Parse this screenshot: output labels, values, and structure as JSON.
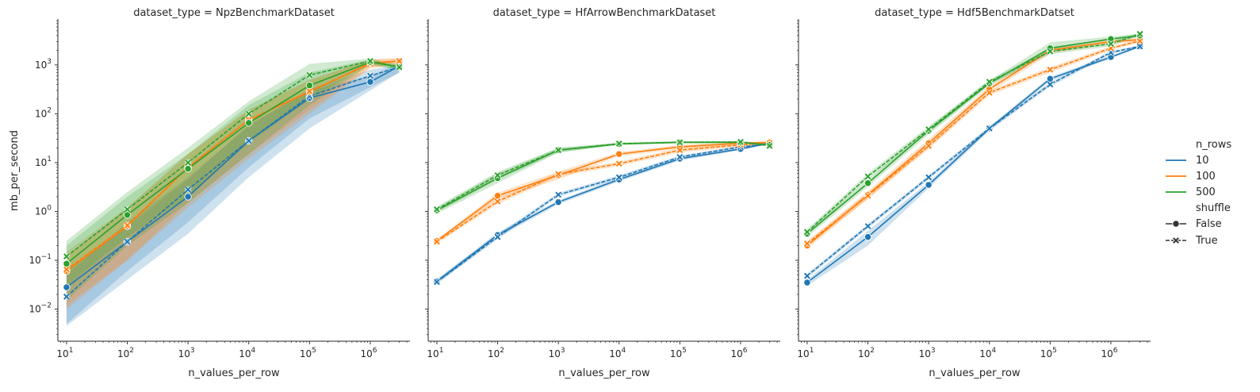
{
  "chart_data": {
    "type": "line",
    "xlabel": "n_values_per_row",
    "ylabel": "mb_per_second",
    "xscale": "log",
    "yscale": "log",
    "x": [
      10,
      100,
      1000,
      10000,
      100000,
      1000000,
      3000000
    ],
    "xtick_labels": [
      {
        "base": "10",
        "exp": "1"
      },
      {
        "base": "10",
        "exp": "2"
      },
      {
        "base": "10",
        "exp": "3"
      },
      {
        "base": "10",
        "exp": "4"
      },
      {
        "base": "10",
        "exp": "5"
      },
      {
        "base": "10",
        "exp": "6"
      }
    ],
    "ytick_labels": [
      {
        "base": "10",
        "exp": "−2"
      },
      {
        "base": "10",
        "exp": "−1"
      },
      {
        "base": "10",
        "exp": "0"
      },
      {
        "base": "10",
        "exp": "1"
      },
      {
        "base": "10",
        "exp": "2"
      },
      {
        "base": "10",
        "exp": "3"
      }
    ],
    "grid": false,
    "legend_placement": "right",
    "legend": {
      "title_hue": "n_rows",
      "hue_entries": [
        {
          "label": "10",
          "color": "#1f77b4"
        },
        {
          "label": "100",
          "color": "#ff7f0e"
        },
        {
          "label": "500",
          "color": "#2ca02c"
        }
      ],
      "title_style": "shuffle",
      "style_entries": [
        {
          "label": "False",
          "marker": "circle",
          "dash": "solid"
        },
        {
          "label": "True",
          "marker": "x",
          "dash": "dashed"
        }
      ]
    },
    "panels": [
      {
        "title": "dataset_type = NpzBenchmarkDataset",
        "series": [
          {
            "n_rows": "10",
            "shuffle": "False",
            "values": [
              0.028,
              0.24,
              2.0,
              28,
              210,
              450,
              950
            ],
            "lower": [
              0.0045,
              0.04,
              0.35,
              5,
              50,
              300,
              700
            ],
            "upper": [
              0.06,
              0.5,
              4.5,
              60,
              300,
              600,
              1100
            ]
          },
          {
            "n_rows": "10",
            "shuffle": "True",
            "values": [
              0.018,
              0.24,
              2.8,
              28,
              230,
              600,
              900
            ],
            "lower": [
              0.005,
              0.06,
              0.6,
              8,
              80,
              350,
              700
            ],
            "upper": [
              0.05,
              0.6,
              5,
              55,
              320,
              800,
              1000
            ]
          },
          {
            "n_rows": "100",
            "shuffle": "False",
            "values": [
              0.06,
              0.5,
              8,
              75,
              280,
              1100,
              1200
            ],
            "lower": [
              0.012,
              0.1,
              1.5,
              15,
              120,
              900,
              1000
            ],
            "upper": [
              0.12,
              1.2,
              15,
              120,
              500,
              1300,
              1350
            ]
          },
          {
            "n_rows": "100",
            "shuffle": "True",
            "values": [
              0.065,
              0.52,
              8,
              75,
              290,
              1050,
              1200
            ],
            "lower": [
              0.01,
              0.1,
              1.2,
              12,
              100,
              850,
              1000
            ],
            "upper": [
              0.15,
              1.2,
              15,
              120,
              480,
              1300,
              1350
            ]
          },
          {
            "n_rows": "500",
            "shuffle": "False",
            "values": [
              0.085,
              0.85,
              7.5,
              65,
              380,
              1150,
              900
            ],
            "lower": [
              0.015,
              0.2,
              1.5,
              15,
              150,
              1000,
              800
            ],
            "upper": [
              0.2,
              2,
              15,
              150,
              700,
              1300,
              1000
            ]
          },
          {
            "n_rows": "500",
            "shuffle": "True",
            "values": [
              0.12,
              1.1,
              10,
              100,
              620,
              1200,
              900
            ],
            "lower": [
              0.03,
              0.3,
              2,
              25,
              200,
              1000,
              800
            ],
            "upper": [
              0.25,
              2.5,
              20,
              180,
              1050,
              1350,
              1000
            ]
          }
        ]
      },
      {
        "title": "dataset_type = HfArrowBenchmarkDataset",
        "series": [
          {
            "n_rows": "10",
            "shuffle": "False",
            "values": [
              0.037,
              0.33,
              1.55,
              4.5,
              12,
              19,
              25
            ],
            "lower": [
              0.033,
              0.29,
              1.4,
              4.1,
              11,
              18,
              24
            ],
            "upper": [
              0.041,
              0.37,
              1.7,
              4.9,
              13,
              20,
              26
            ]
          },
          {
            "n_rows": "10",
            "shuffle": "True",
            "values": [
              0.036,
              0.3,
              2.2,
              5,
              13,
              21,
              24
            ],
            "lower": [
              0.033,
              0.27,
              2.0,
              4.6,
              12,
              20,
              23
            ],
            "upper": [
              0.04,
              0.34,
              2.4,
              5.5,
              14,
              22,
              25
            ]
          },
          {
            "n_rows": "100",
            "shuffle": "False",
            "values": [
              0.25,
              2.1,
              5.5,
              15,
              21,
              25,
              26
            ],
            "lower": [
              0.23,
              1.8,
              4.5,
              13.5,
              19,
              23,
              25
            ],
            "upper": [
              0.27,
              2.4,
              6.5,
              16.5,
              23,
              27,
              27
            ]
          },
          {
            "n_rows": "100",
            "shuffle": "True",
            "values": [
              0.24,
              1.6,
              5.8,
              9.5,
              18,
              23,
              25
            ],
            "lower": [
              0.22,
              1.4,
              5.2,
              8.5,
              16,
              21,
              24
            ],
            "upper": [
              0.26,
              1.9,
              6.4,
              10.5,
              20,
              25,
              26
            ]
          },
          {
            "n_rows": "500",
            "shuffle": "False",
            "values": [
              1.05,
              4.8,
              18,
              24,
              26,
              26,
              23
            ],
            "lower": [
              0.9,
              3.8,
              16,
              23,
              25,
              25,
              22
            ],
            "upper": [
              1.2,
              6,
              20,
              25.5,
              27.5,
              27.5,
              24
            ]
          },
          {
            "n_rows": "500",
            "shuffle": "True",
            "values": [
              1.1,
              5.5,
              18,
              24.5,
              26,
              26.5,
              22
            ],
            "lower": [
              0.95,
              4.5,
              16,
              23.5,
              25,
              25.5,
              21
            ],
            "upper": [
              1.25,
              6.5,
              20,
              25.5,
              27.5,
              27.5,
              23
            ]
          }
        ]
      },
      {
        "title": "dataset_type = Hdf5BenchmarkDatset",
        "series": [
          {
            "n_rows": "10",
            "shuffle": "False",
            "values": [
              0.035,
              0.3,
              3.5,
              50,
              520,
              1450,
              2400
            ],
            "lower": [
              0.03,
              0.2,
              3,
              45,
              470,
              1350,
              2300
            ],
            "upper": [
              0.04,
              0.4,
              4,
              55,
              570,
              1550,
              2500
            ]
          },
          {
            "n_rows": "10",
            "shuffle": "True",
            "values": [
              0.048,
              0.5,
              5,
              50,
              400,
              1800,
              2400
            ],
            "lower": [
              0.043,
              0.45,
              4.5,
              45,
              360,
              1650,
              2300
            ],
            "upper": [
              0.053,
              0.55,
              5.5,
              55,
              440,
              1950,
              2500
            ]
          },
          {
            "n_rows": "100",
            "shuffle": "False",
            "values": [
              0.2,
              2.2,
              25,
              320,
              2000,
              3000,
              3300
            ],
            "lower": [
              0.17,
              1.8,
              20,
              270,
              1700,
              2700,
              3000
            ],
            "upper": [
              0.23,
              2.6,
              30,
              370,
              2300,
              3300,
              3600
            ]
          },
          {
            "n_rows": "100",
            "shuffle": "True",
            "values": [
              0.22,
              2.1,
              22,
              270,
              800,
              2200,
              3100
            ],
            "lower": [
              0.19,
              1.8,
              19,
              240,
              700,
              2000,
              2900
            ],
            "upper": [
              0.25,
              2.4,
              25,
              300,
              900,
              2400,
              3300
            ]
          },
          {
            "n_rows": "500",
            "shuffle": "False",
            "values": [
              0.35,
              3.8,
              45,
              420,
              2200,
              3400,
              4000
            ],
            "lower": [
              0.3,
              3.2,
              38,
              370,
              1800,
              3000,
              3700
            ],
            "upper": [
              0.4,
              4.4,
              52,
              470,
              2900,
              3800,
              4400
            ]
          },
          {
            "n_rows": "500",
            "shuffle": "True",
            "values": [
              0.38,
              5.2,
              48,
              450,
              1900,
              2700,
              4300
            ],
            "lower": [
              0.33,
              4.5,
              41,
              400,
              1650,
              2400,
              4000
            ],
            "upper": [
              0.43,
              6,
              55,
              500,
              2150,
              3000,
              4600
            ]
          }
        ]
      }
    ]
  }
}
